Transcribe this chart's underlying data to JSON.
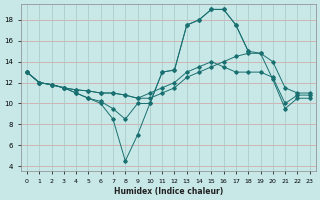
{
  "xlabel": "Humidex (Indice chaleur)",
  "bg_color": "#c8e8e8",
  "hgrid_color": "#d4a0a0",
  "vgrid_color": "#a8c8c8",
  "line_color": "#1a7070",
  "xlim": [
    -0.5,
    23.5
  ],
  "ylim": [
    3.5,
    19.5
  ],
  "xticks": [
    0,
    1,
    2,
    3,
    4,
    5,
    6,
    7,
    8,
    9,
    10,
    11,
    12,
    13,
    14,
    15,
    16,
    17,
    18,
    19,
    20,
    21,
    22,
    23
  ],
  "yticks": [
    4,
    6,
    8,
    10,
    12,
    14,
    16,
    18
  ],
  "lines": [
    {
      "x": [
        0,
        1,
        2,
        3,
        4,
        5,
        6,
        7,
        8,
        9,
        10,
        11,
        12,
        13,
        14,
        15,
        16,
        17,
        18,
        19,
        20,
        21,
        22,
        23
      ],
      "y": [
        13,
        12,
        11.8,
        11.5,
        11,
        10.5,
        10,
        8.5,
        4.5,
        7,
        10,
        13,
        13.2,
        17.5,
        18,
        19,
        19,
        17.5,
        15,
        null,
        null,
        null,
        null,
        null
      ]
    },
    {
      "x": [
        0,
        1,
        2,
        3,
        4,
        5,
        6,
        7,
        8,
        9,
        10,
        11,
        12,
        13,
        14,
        15,
        16,
        17,
        18,
        19,
        20,
        21,
        22,
        23
      ],
      "y": [
        13,
        12,
        11.8,
        11.5,
        11,
        10.5,
        10.2,
        9.5,
        8.5,
        10,
        10,
        13,
        13.2,
        17.5,
        18,
        19,
        19,
        17.5,
        15,
        14.8,
        12.3,
        9.5,
        10.5,
        10.5
      ]
    },
    {
      "x": [
        0,
        1,
        2,
        3,
        4,
        5,
        6,
        7,
        8,
        9,
        10,
        11,
        12,
        13,
        14,
        15,
        16,
        17,
        18,
        19,
        20,
        21,
        22,
        23
      ],
      "y": [
        13,
        12,
        11.8,
        11.5,
        11.3,
        11.2,
        11,
        11,
        10.8,
        10.5,
        10.5,
        11,
        11.5,
        12.5,
        13,
        13.5,
        14,
        14.5,
        14.8,
        14.8,
        14,
        11.5,
        11,
        11
      ]
    },
    {
      "x": [
        0,
        1,
        2,
        3,
        4,
        5,
        6,
        7,
        8,
        9,
        10,
        11,
        12,
        13,
        14,
        15,
        16,
        17,
        18,
        19,
        20,
        21,
        22,
        23
      ],
      "y": [
        13,
        12,
        11.8,
        11.5,
        11.3,
        11.2,
        11,
        11,
        10.8,
        10.5,
        11,
        11.5,
        12,
        13,
        13.5,
        14,
        13.5,
        13,
        13,
        13,
        12.5,
        10,
        10.8,
        10.8
      ]
    }
  ]
}
